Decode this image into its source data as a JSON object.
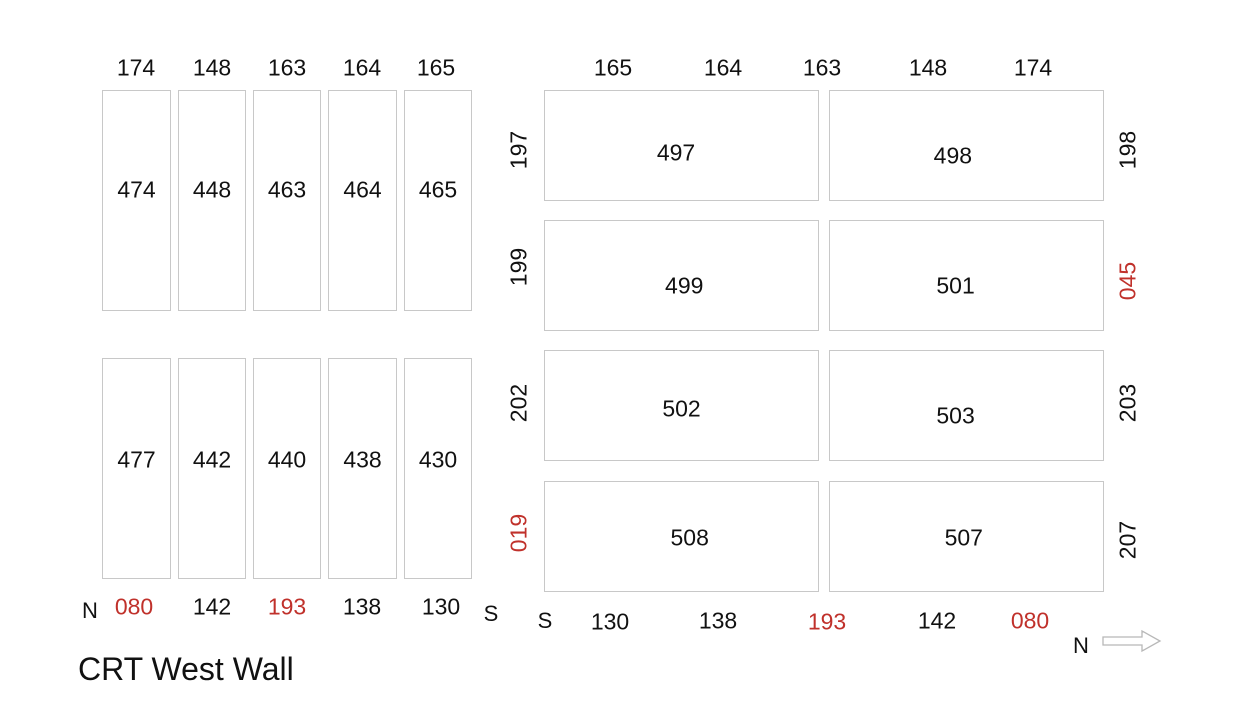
{
  "title": "CRT West Wall",
  "left_panel": {
    "top_labels": [
      {
        "text": "174",
        "red": false
      },
      {
        "text": "148",
        "red": false
      },
      {
        "text": "163",
        "red": false
      },
      {
        "text": "164",
        "red": false
      },
      {
        "text": "165",
        "red": false
      }
    ],
    "upper_modules": [
      "474",
      "448",
      "463",
      "464",
      "465"
    ],
    "lower_modules": [
      "477",
      "442",
      "440",
      "438",
      "430"
    ],
    "bottom_labels": [
      {
        "text": "080",
        "red": true
      },
      {
        "text": "142",
        "red": false
      },
      {
        "text": "193",
        "red": true
      },
      {
        "text": "138",
        "red": false
      },
      {
        "text": "130",
        "red": false
      }
    ],
    "left_direction": "N",
    "right_direction": "S"
  },
  "right_panel": {
    "top_labels": [
      {
        "text": "165",
        "red": false
      },
      {
        "text": "164",
        "red": false
      },
      {
        "text": "163",
        "red": false
      },
      {
        "text": "148",
        "red": false
      },
      {
        "text": "174",
        "red": false
      }
    ],
    "rows": [
      {
        "left_side": {
          "text": "197",
          "red": false
        },
        "modules": [
          "497",
          "498"
        ],
        "right_side": {
          "text": "198",
          "red": false
        }
      },
      {
        "left_side": {
          "text": "199",
          "red": false
        },
        "modules": [
          "499",
          "501"
        ],
        "right_side": {
          "text": "045",
          "red": true
        }
      },
      {
        "left_side": {
          "text": "202",
          "red": false
        },
        "modules": [
          "502",
          "503"
        ],
        "right_side": {
          "text": "203",
          "red": false
        }
      },
      {
        "left_side": {
          "text": "019",
          "red": true
        },
        "modules": [
          "508",
          "507"
        ],
        "right_side": {
          "text": "207",
          "red": false
        }
      }
    ],
    "bottom_labels": [
      {
        "text": "130",
        "red": false
      },
      {
        "text": "138",
        "red": false
      },
      {
        "text": "193",
        "red": true
      },
      {
        "text": "142",
        "red": false
      },
      {
        "text": "080",
        "red": true
      }
    ],
    "left_direction": "S",
    "right_direction": "N",
    "arrow_icon": "right-arrow-icon"
  },
  "colors": {
    "highlight": "#c0312b",
    "box_border": "#c8c8c8",
    "text": "#111111"
  }
}
